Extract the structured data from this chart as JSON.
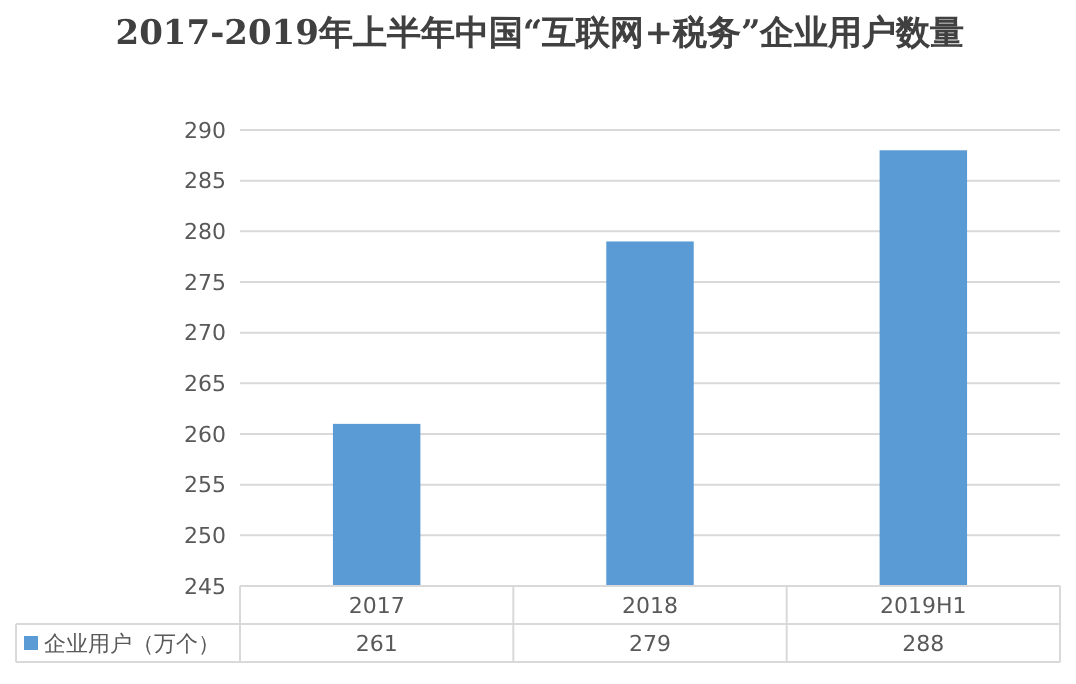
{
  "chart_data": {
    "type": "bar",
    "title": "2017-2019年上半年中国“互联网+税务”企业用户数量",
    "categories": [
      "2017",
      "2018",
      "2019H1"
    ],
    "series": [
      {
        "name": "企业用户（万个）",
        "color": "#5b9bd5",
        "values": [
          261,
          279,
          288
        ]
      }
    ],
    "ylim": [
      245,
      290
    ],
    "yticks": [
      245,
      250,
      255,
      260,
      265,
      270,
      275,
      280,
      285,
      290
    ],
    "grid": "y",
    "data_labels": true,
    "legend": "bottom left"
  }
}
